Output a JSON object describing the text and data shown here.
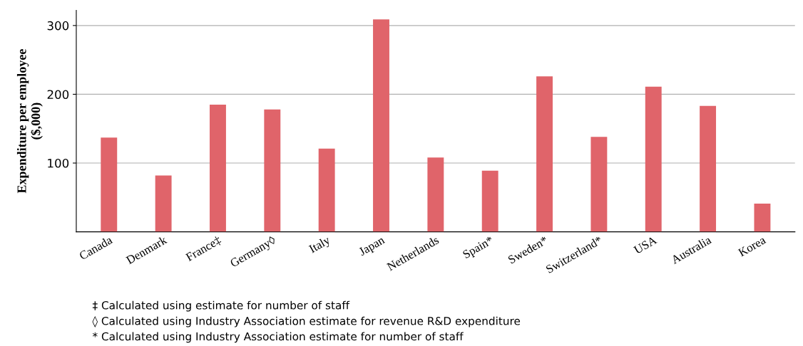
{
  "chart_data": {
    "type": "bar",
    "ylabel": "Expenditure per employee\n($,000)",
    "categories": [
      "Canada",
      "Denmark",
      "France‡",
      "Germany◊",
      "Italy",
      "Japan",
      "Netherlands",
      "Spain*",
      "Sweden*",
      "Switzerland*",
      "USA",
      "Australia",
      "Korea"
    ],
    "values": [
      137,
      82,
      185,
      178,
      121,
      309,
      108,
      89,
      226,
      138,
      211,
      183,
      41
    ],
    "color": "#e0646a",
    "ylim": [
      0,
      322
    ],
    "yticks": [
      100,
      200,
      300
    ],
    "grid": "y",
    "annotations": [
      "‡ Calculated using estimate for number of staff",
      "◊ Calculated using Industry Association estimate for revenue R&D expenditure",
      "* Calculated using Industry Association estimate for number of staff"
    ]
  }
}
